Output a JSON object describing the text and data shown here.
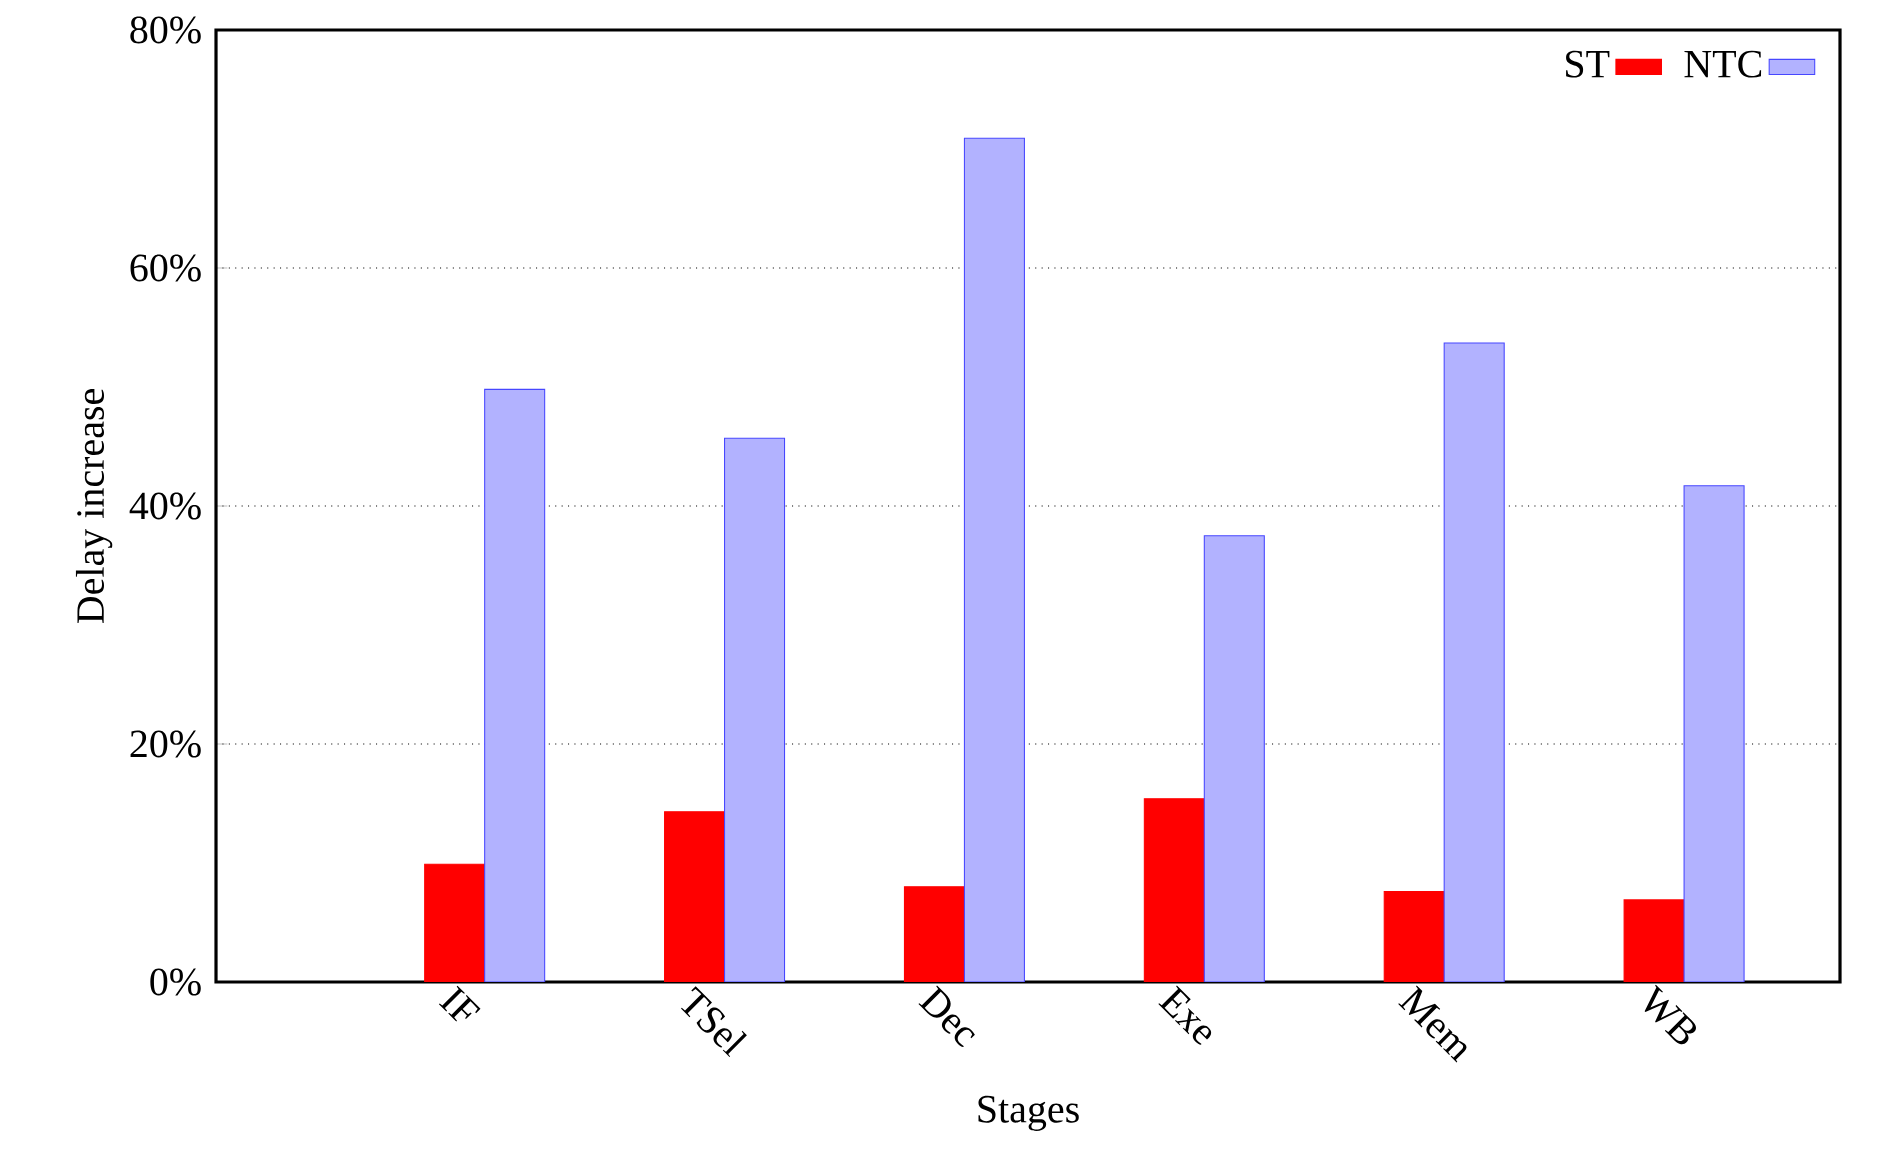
{
  "chart_data": {
    "type": "bar",
    "xlabel": "Stages",
    "ylabel": "Delay increase",
    "categories": [
      null,
      "IF",
      "TSel",
      "Dec",
      "Exe",
      "Mem",
      "WB"
    ],
    "series": [
      {
        "name": "ST",
        "color": "#ff0000",
        "values": [
          null,
          9.9,
          14.3,
          8.0,
          15.4,
          7.6,
          6.9
        ]
      },
      {
        "name": "NTC",
        "color": "#b2b2ff",
        "values": [
          null,
          49.8,
          45.7,
          70.9,
          37.5,
          53.7,
          41.7
        ]
      }
    ],
    "ylim": [
      0,
      80
    ],
    "yticks": [
      {
        "value": 0,
        "label": "0%"
      },
      {
        "value": 20,
        "label": "20%"
      },
      {
        "value": 40,
        "label": "40%"
      },
      {
        "value": 60,
        "label": "60%"
      },
      {
        "value": 80,
        "label": "80%"
      }
    ],
    "grid": "y",
    "legend": "top right"
  }
}
